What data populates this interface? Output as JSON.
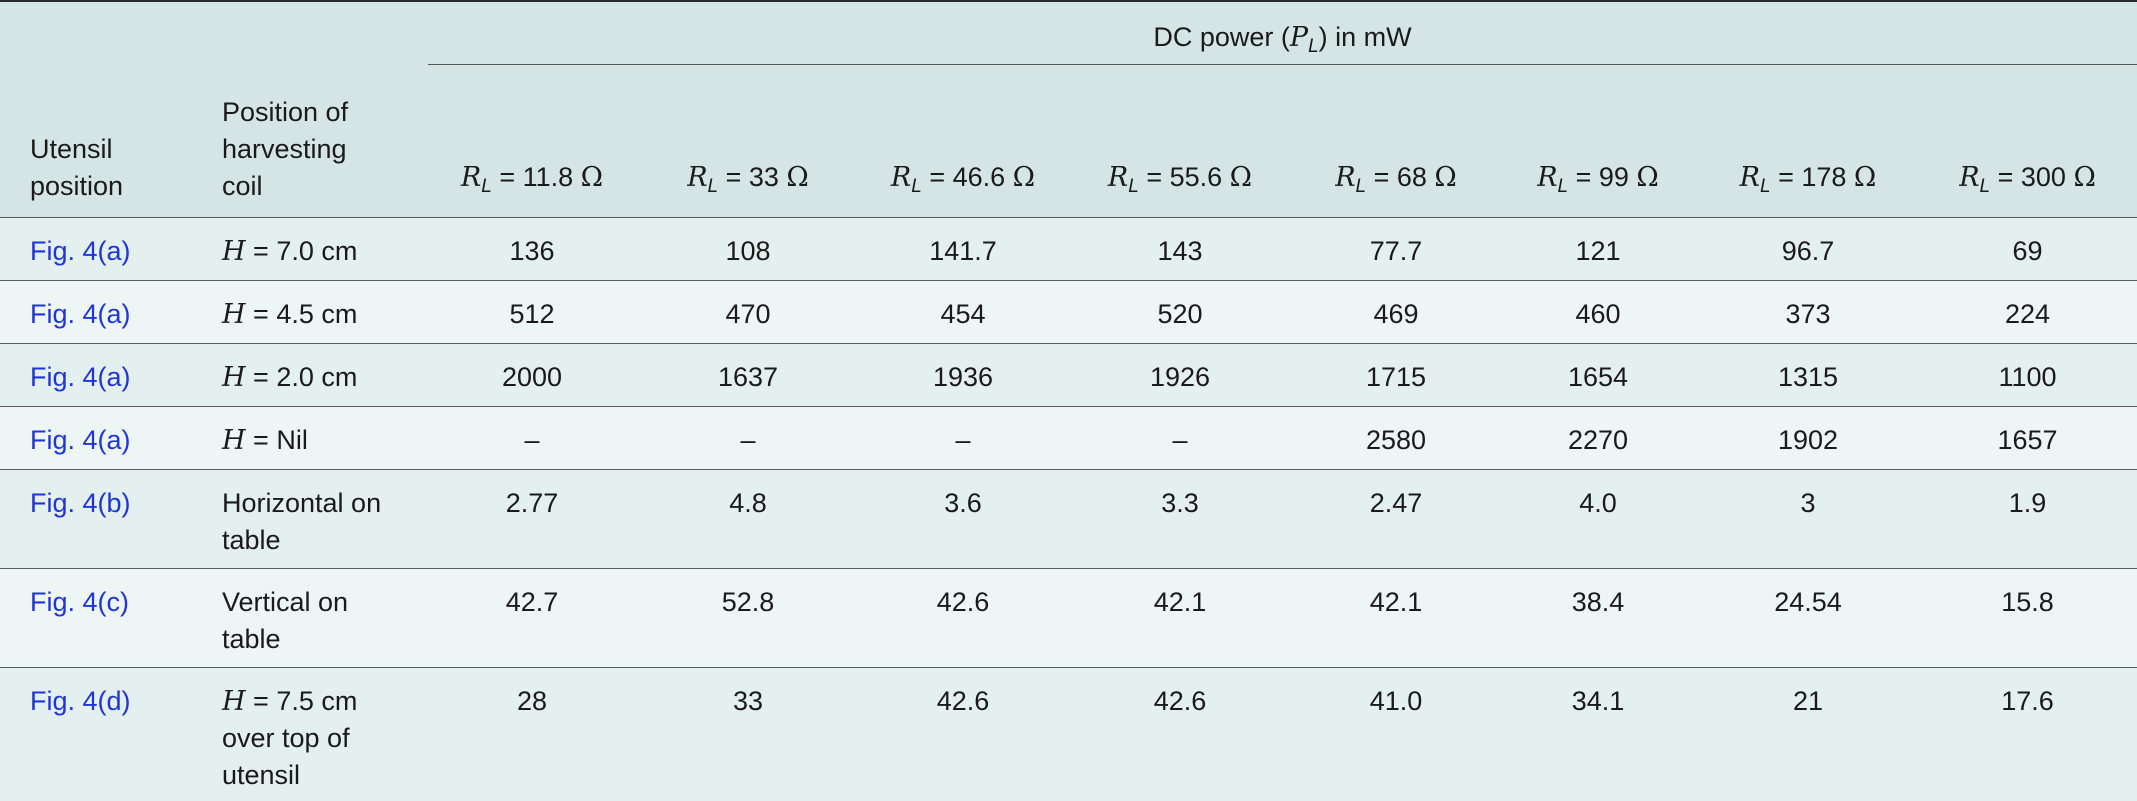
{
  "table": {
    "group_header": "DC power (P_L) in mW",
    "group_header_parts": {
      "pre": "DC power (",
      "sym": "P",
      "sub": "L",
      "post": ") in mW"
    },
    "col_utensil": "Utensil position",
    "col_position": "Position of harvesting coil",
    "resistances": [
      {
        "sym": "R",
        "sub": "L",
        "eq": " = 11.8 ",
        "unit": "Ω"
      },
      {
        "sym": "R",
        "sub": "L",
        "eq": " = 33 ",
        "unit": "Ω"
      },
      {
        "sym": "R",
        "sub": "L",
        "eq": " = 46.6 ",
        "unit": "Ω"
      },
      {
        "sym": "R",
        "sub": "L",
        "eq": " = 55.6 ",
        "unit": "Ω"
      },
      {
        "sym": "R",
        "sub": "L",
        "eq": " = 68 ",
        "unit": "Ω"
      },
      {
        "sym": "R",
        "sub": "L",
        "eq": " = 99 ",
        "unit": "Ω"
      },
      {
        "sym": "R",
        "sub": "L",
        "eq": " = 178 ",
        "unit": "Ω"
      },
      {
        "sym": "R",
        "sub": "L",
        "eq": " = 300 ",
        "unit": "Ω"
      }
    ],
    "rows": [
      {
        "utensil": "Fig. 4(a)",
        "pos_var": "H",
        "pos_text": " = 7.0 cm",
        "values": [
          "136",
          "108",
          "141.7",
          "143",
          "77.7",
          "121",
          "96.7",
          "69"
        ]
      },
      {
        "utensil": "Fig. 4(a)",
        "pos_var": "H",
        "pos_text": " = 4.5 cm",
        "values": [
          "512",
          "470",
          "454",
          "520",
          "469",
          "460",
          "373",
          "224"
        ]
      },
      {
        "utensil": "Fig. 4(a)",
        "pos_var": "H",
        "pos_text": " = 2.0 cm",
        "values": [
          "2000",
          "1637",
          "1936",
          "1926",
          "1715",
          "1654",
          "1315",
          "1100"
        ]
      },
      {
        "utensil": "Fig. 4(a)",
        "pos_var": "H",
        "pos_text": " = Nil",
        "values": [
          "–",
          "–",
          "–",
          "–",
          "2580",
          "2270",
          "1902",
          "1657"
        ]
      },
      {
        "utensil": "Fig. 4(b)",
        "pos_var": "",
        "pos_text": "Horizontal on table",
        "values": [
          "2.77",
          "4.8",
          "3.6",
          "3.3",
          "2.47",
          "4.0",
          "3",
          "1.9"
        ]
      },
      {
        "utensil": "Fig. 4(c)",
        "pos_var": "",
        "pos_text": "Vertical on table",
        "values": [
          "42.7",
          "52.8",
          "42.6",
          "42.1",
          "42.1",
          "38.4",
          "24.54",
          "15.8"
        ]
      },
      {
        "utensil": "Fig. 4(d)",
        "pos_var": "H",
        "pos_text": " = 7.5 cm over top of utensil",
        "values": [
          "28",
          "33",
          "42.6",
          "42.6",
          "41.0",
          "34.1",
          "21",
          "17.6"
        ]
      }
    ]
  },
  "colors": {
    "header_bg": "#d5e5e5",
    "row_bg_a": "#e4efef",
    "row_bg_b": "#eef5f5",
    "link_blue": "#1f35d6"
  }
}
